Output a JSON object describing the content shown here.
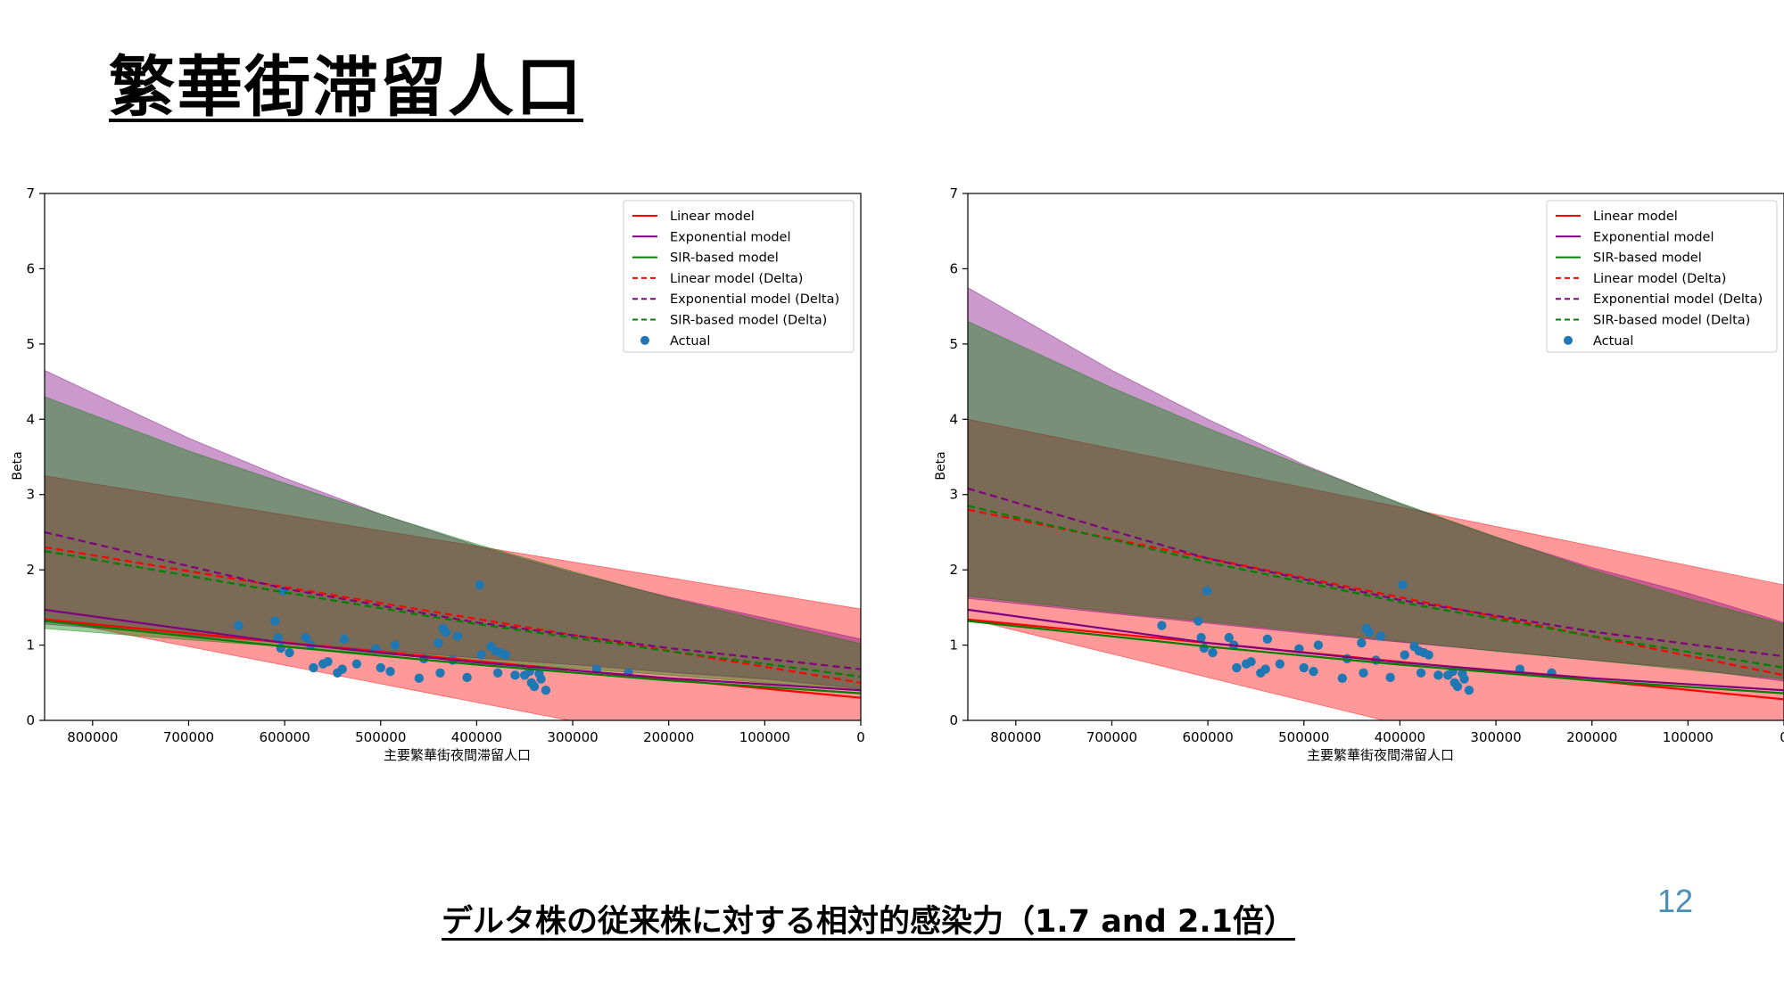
{
  "slide": {
    "title": "繁華街滞留人口",
    "caption": "デルタ株の従来株に対する相対的感染力（1.7 and 2.1倍）",
    "page_number": "12"
  },
  "chart_data": [
    {
      "type": "line",
      "title": "",
      "xlabel": "主要繁華街夜間滞留人口",
      "ylabel": "Beta",
      "xlim": [
        850000,
        0
      ],
      "ylim": [
        0,
        7
      ],
      "x_ticks": [
        800000,
        700000,
        600000,
        500000,
        400000,
        300000,
        200000,
        100000,
        0
      ],
      "y_ticks": [
        0,
        1,
        2,
        3,
        4,
        5,
        6,
        7
      ],
      "legend_position": "top-right",
      "legend": [
        "Linear model",
        "Exponential model",
        "SIR-based model",
        "Linear model (Delta)",
        "Exponential model (Delta)",
        "SIR-based model (Delta)",
        "Actual"
      ],
      "colors": {
        "linear": "#ff0000",
        "exponential": "#800080",
        "sir": "#008000",
        "actual": "#1f77b4"
      },
      "bands": [
        {
          "name": "Linear model (Delta)",
          "color": "#ff0000",
          "opacity": 0.4,
          "x": [
            850000,
            0
          ],
          "lower": [
            1.35,
            -0.75
          ],
          "upper": [
            3.25,
            1.48
          ]
        },
        {
          "name": "Exponential model (Delta)",
          "color": "#800080",
          "opacity": 0.4,
          "x": [
            850000,
            700000,
            600000,
            500000,
            400000,
            300000,
            200000,
            100000,
            0
          ],
          "lower": [
            1.28,
            1.13,
            1.03,
            0.93,
            0.83,
            0.74,
            0.64,
            0.55,
            0.42
          ],
          "upper": [
            4.65,
            3.75,
            3.22,
            2.74,
            2.32,
            1.96,
            1.64,
            1.36,
            1.08
          ]
        },
        {
          "name": "SIR-based model (Delta)",
          "color": "#008000",
          "opacity": 0.4,
          "x": [
            850000,
            700000,
            600000,
            500000,
            400000,
            300000,
            200000,
            100000,
            0
          ],
          "lower": [
            1.22,
            1.07,
            0.98,
            0.88,
            0.78,
            0.69,
            0.6,
            0.5,
            0.4
          ],
          "upper": [
            4.3,
            3.58,
            3.15,
            2.74,
            2.34,
            1.98,
            1.63,
            1.32,
            1.02
          ]
        }
      ],
      "series": [
        {
          "name": "Linear model",
          "style": "solid",
          "color": "#ff0000",
          "x": [
            850000,
            0
          ],
          "y": [
            1.34,
            0.3
          ]
        },
        {
          "name": "Exponential model",
          "style": "solid",
          "color": "#800080",
          "x": [
            850000,
            600000,
            400000,
            200000,
            0
          ],
          "y": [
            1.47,
            1.03,
            0.77,
            0.56,
            0.4
          ]
        },
        {
          "name": "SIR-based model",
          "style": "solid",
          "color": "#008000",
          "x": [
            850000,
            600000,
            400000,
            200000,
            0
          ],
          "y": [
            1.32,
            0.98,
            0.74,
            0.53,
            0.36
          ]
        },
        {
          "name": "Linear model (Delta)",
          "style": "dashed",
          "color": "#ff0000",
          "x": [
            850000,
            0
          ],
          "y": [
            2.3,
            0.5
          ]
        },
        {
          "name": "Exponential model (Delta)",
          "style": "dashed",
          "color": "#800080",
          "x": [
            850000,
            600000,
            400000,
            200000,
            0
          ],
          "y": [
            2.5,
            1.75,
            1.3,
            0.96,
            0.68
          ]
        },
        {
          "name": "SIR-based model (Delta)",
          "style": "dashed",
          "color": "#008000",
          "x": [
            850000,
            600000,
            400000,
            200000,
            0
          ],
          "y": [
            2.25,
            1.7,
            1.28,
            0.92,
            0.58
          ]
        }
      ],
      "actual": {
        "name": "Actual",
        "x": [
          648000,
          610000,
          607000,
          604000,
          601000,
          595000,
          578000,
          573000,
          570000,
          560000,
          555000,
          545000,
          540000,
          538000,
          525000,
          505000,
          500000,
          490000,
          485000,
          460000,
          455000,
          440000,
          438000,
          435000,
          432000,
          425000,
          420000,
          410000,
          397000,
          395000,
          385000,
          380000,
          378000,
          375000,
          370000,
          360000,
          350000,
          345000,
          343000,
          340000,
          335000,
          333000,
          328000,
          275000,
          242000
        ],
        "y": [
          1.26,
          1.32,
          1.1,
          0.96,
          1.72,
          0.9,
          1.1,
          1.0,
          0.7,
          0.75,
          0.78,
          0.63,
          0.68,
          1.08,
          0.75,
          0.95,
          0.7,
          0.65,
          1.0,
          0.56,
          0.82,
          1.03,
          0.63,
          1.22,
          1.17,
          0.8,
          1.12,
          0.57,
          1.8,
          0.87,
          0.98,
          0.92,
          0.63,
          0.9,
          0.87,
          0.6,
          0.6,
          0.65,
          0.5,
          0.45,
          0.62,
          0.55,
          0.4,
          0.68,
          0.63
        ]
      }
    },
    {
      "type": "line",
      "title": "",
      "xlabel": "主要繁華街夜間滞留人口",
      "ylabel": "Beta",
      "xlim": [
        850000,
        0
      ],
      "ylim": [
        0,
        7
      ],
      "x_ticks": [
        800000,
        700000,
        600000,
        500000,
        400000,
        300000,
        200000,
        100000,
        0
      ],
      "y_ticks": [
        0,
        1,
        2,
        3,
        4,
        5,
        6,
        7
      ],
      "legend_position": "top-right",
      "legend": [
        "Linear model",
        "Exponential model",
        "SIR-based model",
        "Linear model (Delta)",
        "Exponential model (Delta)",
        "SIR-based model (Delta)",
        "Actual"
      ],
      "colors": {
        "linear": "#ff0000",
        "exponential": "#800080",
        "sir": "#008000",
        "actual": "#1f77b4"
      },
      "bands": [
        {
          "name": "Linear model (Delta)",
          "color": "#ff0000",
          "opacity": 0.4,
          "x": [
            850000,
            0
          ],
          "lower": [
            1.35,
            -1.3
          ],
          "upper": [
            4.0,
            1.8
          ]
        },
        {
          "name": "Exponential model (Delta)",
          "color": "#800080",
          "opacity": 0.4,
          "x": [
            850000,
            700000,
            600000,
            500000,
            400000,
            300000,
            200000,
            100000,
            0
          ],
          "lower": [
            1.62,
            1.42,
            1.29,
            1.16,
            1.04,
            0.92,
            0.8,
            0.69,
            0.52
          ],
          "upper": [
            5.75,
            4.65,
            4.0,
            3.4,
            2.88,
            2.43,
            2.03,
            1.69,
            1.3
          ]
        },
        {
          "name": "SIR-based model (Delta)",
          "color": "#008000",
          "opacity": 0.4,
          "x": [
            850000,
            700000,
            600000,
            500000,
            400000,
            300000,
            200000,
            100000,
            0
          ],
          "lower": [
            1.65,
            1.44,
            1.31,
            1.18,
            1.05,
            0.92,
            0.8,
            0.67,
            0.55
          ],
          "upper": [
            5.3,
            4.42,
            3.88,
            3.38,
            2.89,
            2.44,
            2.0,
            1.62,
            1.28
          ]
        }
      ],
      "series": [
        {
          "name": "Linear model",
          "style": "solid",
          "color": "#ff0000",
          "x": [
            850000,
            0
          ],
          "y": [
            1.34,
            0.28
          ]
        },
        {
          "name": "Exponential model",
          "style": "solid",
          "color": "#800080",
          "x": [
            850000,
            600000,
            400000,
            200000,
            0
          ],
          "y": [
            1.47,
            1.03,
            0.77,
            0.56,
            0.4
          ]
        },
        {
          "name": "SIR-based model",
          "style": "solid",
          "color": "#008000",
          "x": [
            850000,
            600000,
            400000,
            200000,
            0
          ],
          "y": [
            1.32,
            0.98,
            0.74,
            0.53,
            0.36
          ]
        },
        {
          "name": "Linear model (Delta)",
          "style": "dashed",
          "color": "#ff0000",
          "x": [
            850000,
            0
          ],
          "y": [
            2.8,
            0.6
          ]
        },
        {
          "name": "Exponential model (Delta)",
          "style": "dashed",
          "color": "#800080",
          "x": [
            850000,
            600000,
            400000,
            200000,
            0
          ],
          "y": [
            3.08,
            2.15,
            1.6,
            1.18,
            0.85
          ]
        },
        {
          "name": "SIR-based model (Delta)",
          "style": "dashed",
          "color": "#008000",
          "x": [
            850000,
            600000,
            400000,
            200000,
            0
          ],
          "y": [
            2.85,
            2.1,
            1.57,
            1.12,
            0.7
          ]
        }
      ],
      "actual": {
        "name": "Actual",
        "x": [
          648000,
          610000,
          607000,
          604000,
          601000,
          595000,
          578000,
          573000,
          570000,
          560000,
          555000,
          545000,
          540000,
          538000,
          525000,
          505000,
          500000,
          490000,
          485000,
          460000,
          455000,
          440000,
          438000,
          435000,
          432000,
          425000,
          420000,
          410000,
          397000,
          395000,
          385000,
          380000,
          378000,
          375000,
          370000,
          360000,
          350000,
          345000,
          343000,
          340000,
          335000,
          333000,
          328000,
          275000,
          242000
        ],
        "y": [
          1.26,
          1.32,
          1.1,
          0.96,
          1.72,
          0.9,
          1.1,
          1.0,
          0.7,
          0.75,
          0.78,
          0.63,
          0.68,
          1.08,
          0.75,
          0.95,
          0.7,
          0.65,
          1.0,
          0.56,
          0.82,
          1.03,
          0.63,
          1.22,
          1.17,
          0.8,
          1.12,
          0.57,
          1.8,
          0.87,
          0.98,
          0.92,
          0.63,
          0.9,
          0.87,
          0.6,
          0.6,
          0.65,
          0.5,
          0.45,
          0.62,
          0.55,
          0.4,
          0.68,
          0.63
        ]
      }
    }
  ]
}
